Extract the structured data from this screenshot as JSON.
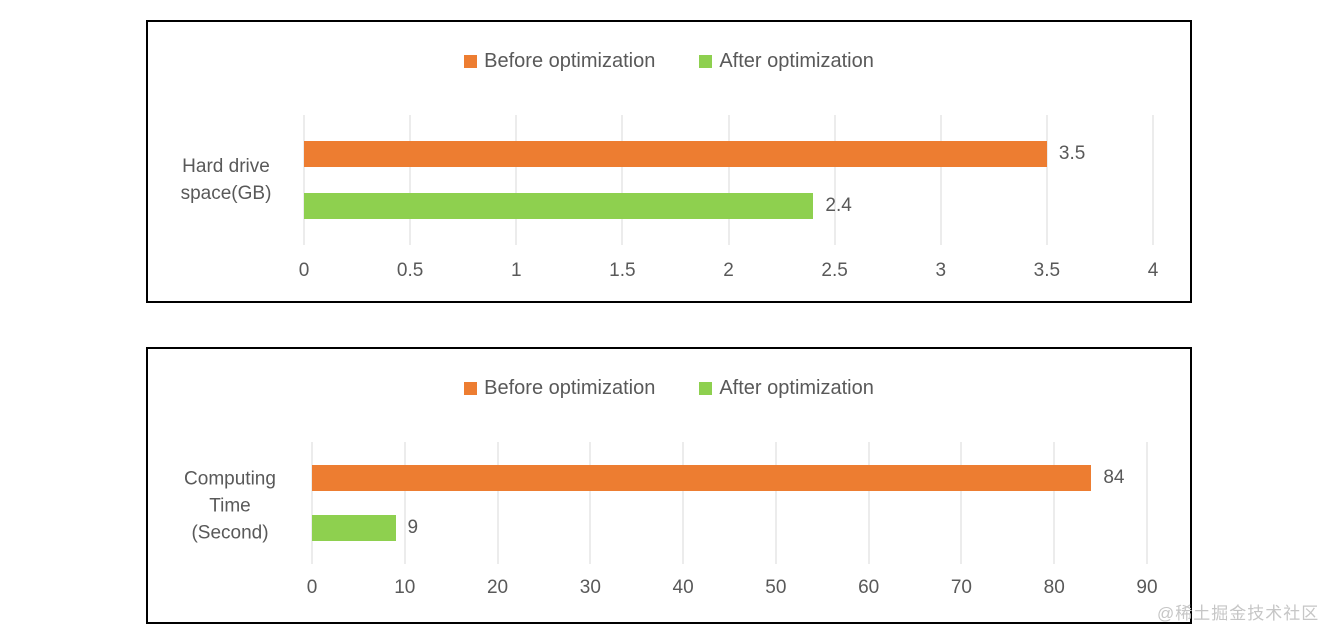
{
  "watermark": "@稀土掘金技术社区",
  "colors": {
    "before_series": "#ED7D31",
    "after_series": "#8ED04F",
    "gridline": "#D9D9D9",
    "text": "#595959",
    "frame": "#000000"
  },
  "chart_data": [
    {
      "type": "bar",
      "orientation": "horizontal",
      "title": "",
      "category": "Hard drive\nspace(GB)",
      "series": [
        {
          "name": "Before optimization",
          "value": 3.5,
          "label": "3.5",
          "color": "#ED7D31"
        },
        {
          "name": "After optimization",
          "value": 2.4,
          "label": "2.4",
          "color": "#8ED04F"
        }
      ],
      "xlim": [
        0,
        4
      ],
      "ticks": [
        "0",
        "0.5",
        "1",
        "1.5",
        "2",
        "2.5",
        "3",
        "3.5",
        "4"
      ],
      "grid": true,
      "legend_position": "top-center"
    },
    {
      "type": "bar",
      "orientation": "horizontal",
      "title": "",
      "category": "Computing\nTime\n(Second)",
      "series": [
        {
          "name": "Before optimization",
          "value": 84,
          "label": "84",
          "color": "#ED7D31"
        },
        {
          "name": "After optimization",
          "value": 9,
          "label": "9",
          "color": "#8ED04F"
        }
      ],
      "xlim": [
        0,
        90
      ],
      "ticks": [
        "0",
        "10",
        "20",
        "30",
        "40",
        "50",
        "60",
        "70",
        "80",
        "90"
      ],
      "grid": true,
      "legend_position": "top-center"
    }
  ]
}
